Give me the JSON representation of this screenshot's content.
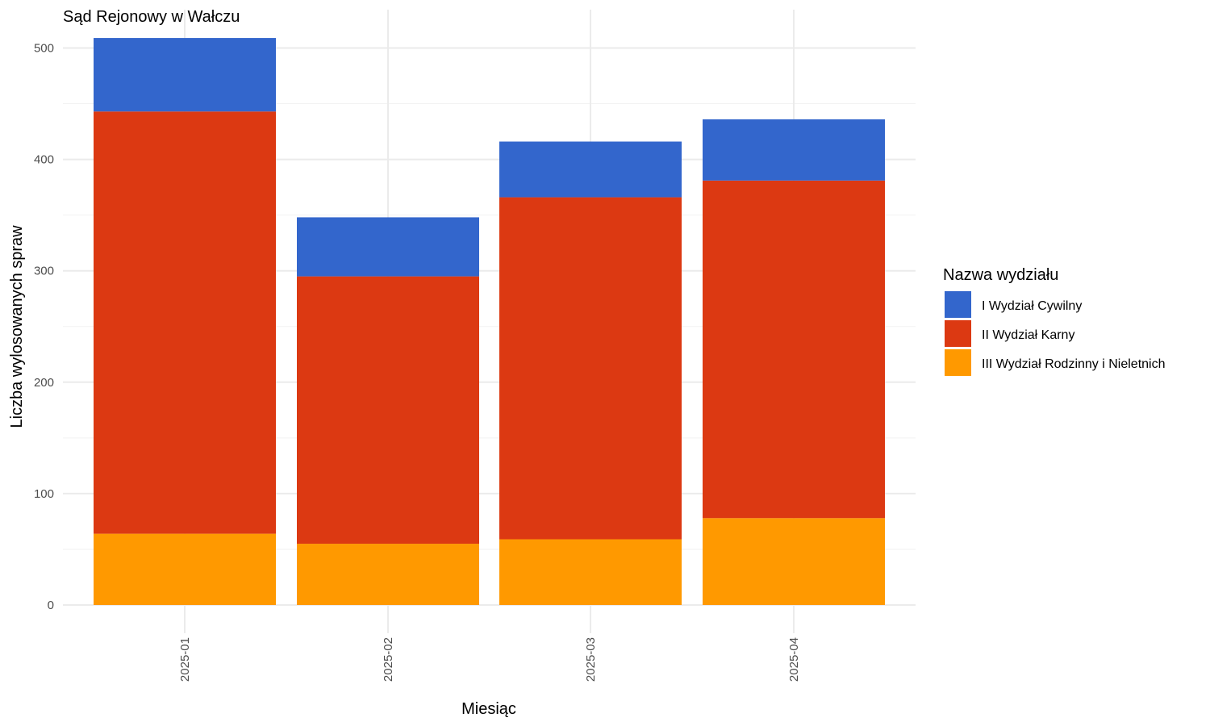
{
  "chart_data": {
    "type": "bar",
    "stacked": true,
    "title": "Sąd Rejonowy w Wałczu",
    "xlabel": "Miesiąc",
    "ylabel": "Liczba wylosowanych spraw",
    "categories": [
      "2025-01",
      "2025-02",
      "2025-03",
      "2025-04"
    ],
    "ylim": [
      0,
      510
    ],
    "yticks": [
      0,
      100,
      200,
      300,
      400,
      500
    ],
    "grid": true,
    "legend": {
      "title": "Nazwa wydziału",
      "position": "right"
    },
    "series": [
      {
        "name": "I Wydział Cywilny",
        "color": "#3366CC",
        "values": [
          66,
          53,
          50,
          55
        ]
      },
      {
        "name": "II Wydział Karny",
        "color": "#DC3912",
        "values": [
          379,
          240,
          307,
          303
        ]
      },
      {
        "name": "III Wydział Rodzinny i Nieletnich",
        "color": "#FF9900",
        "values": [
          64,
          55,
          59,
          78
        ]
      }
    ]
  }
}
